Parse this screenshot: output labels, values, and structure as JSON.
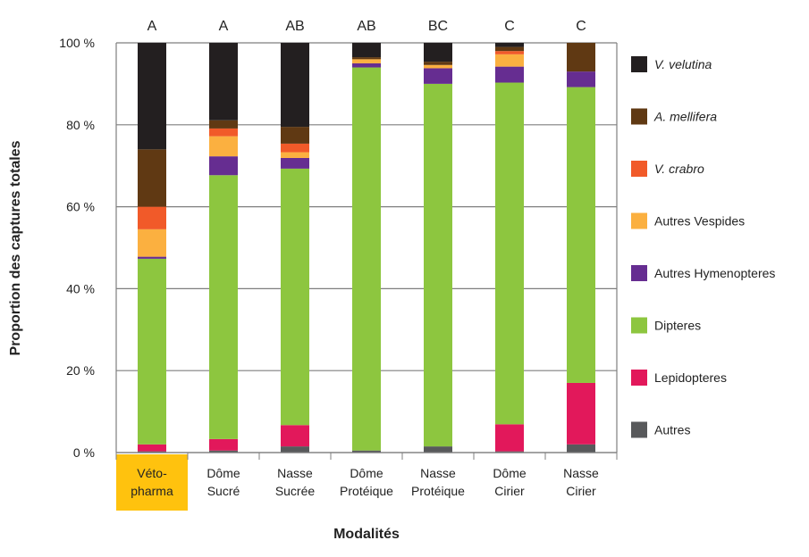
{
  "chart_data": {
    "type": "bar",
    "stacked": true,
    "title": "",
    "xlabel": "Modalités",
    "ylabel": "Proportion des captures totales",
    "ylim": [
      0,
      100
    ],
    "yticks": [
      "0 %",
      "20 %",
      "40 %",
      "60 %",
      "80 %",
      "100 %"
    ],
    "grid": true,
    "legend_position": "right",
    "categories": [
      [
        "Véto-",
        "pharma"
      ],
      [
        "Dôme",
        "Sucré"
      ],
      [
        "Nasse",
        "Sucrée"
      ],
      [
        "Dôme",
        "Protéique"
      ],
      [
        "Nasse",
        "Protéique"
      ],
      [
        "Dôme",
        "Cirier"
      ],
      [
        "Nasse",
        "Cirier"
      ]
    ],
    "highlight_category_index": 0,
    "highlight_color": "#FFC20E",
    "group_letters": [
      "A",
      "A",
      "AB",
      "AB",
      "BC",
      "C",
      "C"
    ],
    "series": [
      {
        "name": "Autres",
        "italic": false,
        "color": "#58595B",
        "values": [
          0.3,
          0.5,
          1.5,
          0.5,
          1.5,
          0.3,
          2.0
        ]
      },
      {
        "name": "Lepidopteres",
        "italic": false,
        "color": "#E2185B",
        "values": [
          1.7,
          2.8,
          5.2,
          0.0,
          0.0,
          6.6,
          15.0
        ]
      },
      {
        "name": "Dipteres",
        "italic": false,
        "color": "#8DC63F",
        "values": [
          45.3,
          64.4,
          62.6,
          93.5,
          88.5,
          83.4,
          72.2
        ]
      },
      {
        "name": "Autres Hymenopteres",
        "italic": false,
        "color": "#662D91",
        "values": [
          0.5,
          4.6,
          2.6,
          1.0,
          3.8,
          3.9,
          3.8
        ]
      },
      {
        "name": "Autres Vespides",
        "italic": false,
        "color": "#FBB040",
        "values": [
          6.7,
          4.9,
          1.4,
          1.0,
          0.8,
          3.0,
          0.0
        ]
      },
      {
        "name": "V. crabro",
        "italic": true,
        "color": "#F15A29",
        "values": [
          5.5,
          1.9,
          2.1,
          0.0,
          0.0,
          0.8,
          0.0
        ]
      },
      {
        "name": "A. mellifera",
        "italic": true,
        "color": "#603913",
        "values": [
          14.0,
          2.0,
          4.1,
          0.5,
          0.8,
          1.0,
          7.0
        ]
      },
      {
        "name": "V. velutina",
        "italic": true,
        "color": "#231F20",
        "values": [
          26.0,
          18.9,
          20.5,
          3.5,
          4.6,
          1.0,
          0.0
        ]
      }
    ]
  }
}
